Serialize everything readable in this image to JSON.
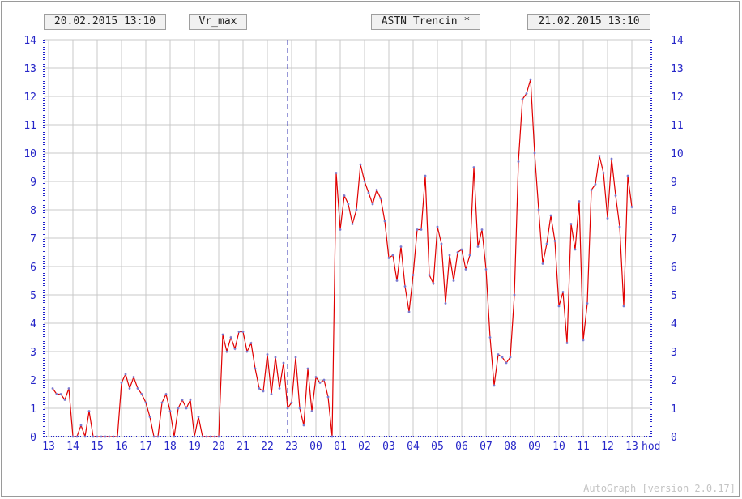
{
  "header": {
    "start_time": "20.02.2015 13:10",
    "quantity": "Vr_max",
    "station": "ASTN Trencin *",
    "end_time": "21.02.2015 13:10"
  },
  "footer": {
    "version": "AutoGraph [version 2.0.17]"
  },
  "colors": {
    "line": "#e00000",
    "point": "#7a7ad0",
    "axis": "#2222cc",
    "grid": "#c8c8c8"
  },
  "chart_data": {
    "type": "line",
    "title": "",
    "xlabel": "",
    "ylabel": "",
    "x_unit": "hod",
    "x_tick_labels": [
      "13",
      "14",
      "15",
      "16",
      "17",
      "18",
      "19",
      "20",
      "21",
      "22",
      "23",
      "00",
      "01",
      "02",
      "03",
      "04",
      "05",
      "06",
      "07",
      "08",
      "09",
      "10",
      "11",
      "12",
      "13"
    ],
    "ylim": [
      0,
      14
    ],
    "y_ticks": [
      0,
      1,
      2,
      3,
      4,
      5,
      6,
      7,
      8,
      9,
      10,
      11,
      12,
      13,
      14
    ],
    "grid": true,
    "marker_time": "22:50",
    "series": [
      {
        "time_start": "20.02.2015 13:10",
        "step_minutes": 10,
        "values": [
          1.7,
          1.5,
          1.5,
          1.3,
          1.7,
          0,
          0,
          0.4,
          0,
          0.9,
          0,
          0,
          0,
          0,
          0,
          0,
          0,
          1.9,
          2.2,
          1.7,
          2.1,
          1.7,
          1.5,
          1.2,
          0.7,
          0,
          0,
          1.2,
          1.5,
          0.9,
          0,
          1.0,
          1.3,
          1.0,
          1.3,
          0,
          0.7,
          0,
          0,
          0,
          0,
          0,
          3.6,
          3.0,
          3.5,
          3.1,
          3.7,
          3.7,
          3.0,
          3.3,
          2.4,
          1.7,
          1.6,
          2.9,
          1.5,
          2.8,
          1.7,
          2.6,
          1.0,
          1.2,
          2.8,
          1.0,
          0.4,
          2.4,
          0.9,
          2.1,
          1.9,
          2.0,
          1.4,
          0,
          9.3,
          7.3,
          8.5,
          8.2,
          7.5,
          8.0,
          9.6,
          9.0,
          8.6,
          8.2,
          8.7,
          8.4,
          7.6,
          6.3,
          6.4,
          5.5,
          6.7,
          5.3,
          4.4,
          5.7,
          7.3,
          7.3,
          9.2,
          5.7,
          5.4,
          7.4,
          6.8,
          4.7,
          6.4,
          5.5,
          6.5,
          6.6,
          5.9,
          6.4,
          9.5,
          6.7,
          7.3,
          5.9,
          3.5,
          1.8,
          2.9,
          2.8,
          2.6,
          2.8,
          5.0,
          9.7,
          11.9,
          12.1,
          12.6,
          10.0,
          8.0,
          6.1,
          6.8,
          7.8,
          6.9,
          4.6,
          5.1,
          3.3,
          7.5,
          6.6,
          8.3,
          3.4,
          4.7,
          8.7,
          8.9,
          9.9,
          9.3,
          7.7,
          9.8,
          8.5,
          7.4,
          4.6,
          9.2,
          8.1
        ]
      }
    ]
  }
}
